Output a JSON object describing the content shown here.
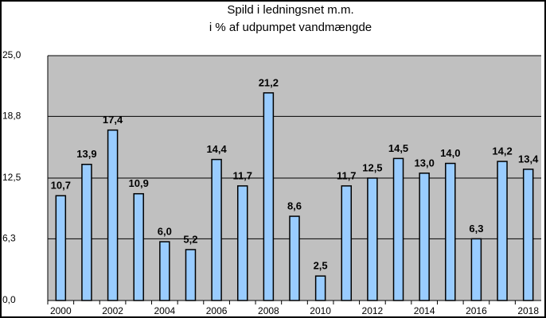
{
  "chart_data": {
    "type": "bar",
    "title": [
      "Spild i ledningsnet m.m.",
      "i % af udpumpet vandmængde"
    ],
    "categories": [
      "2000",
      null,
      "2002",
      null,
      "2004",
      null,
      "2006",
      null,
      "2008",
      null,
      "2010",
      null,
      "2012",
      null,
      "2014",
      null,
      "2016",
      null,
      "2018"
    ],
    "values": [
      10.7,
      13.9,
      17.4,
      10.9,
      6.0,
      5.2,
      14.4,
      11.7,
      21.2,
      8.6,
      2.5,
      11.7,
      12.5,
      14.5,
      13.0,
      14.0,
      6.3,
      14.2,
      13.4
    ],
    "value_labels": [
      "10,7",
      "13,9",
      "17,4",
      "10,9",
      "6,0",
      "5,2",
      "14,4",
      "11,7",
      "21,2",
      "8,6",
      "2,5",
      "11,7",
      "12,5",
      "14,5",
      "13,0",
      "14,0",
      "6,3",
      "14,2",
      "13,4"
    ],
    "color": "#99ccff",
    "ylim": [
      0,
      25
    ],
    "yticks": [
      {
        "value": 0,
        "label": "0,0"
      },
      {
        "value": 6.3,
        "label": "6,3"
      },
      {
        "value": 12.5,
        "label": "12,5"
      },
      {
        "value": 18.8,
        "label": "18,8"
      },
      {
        "value": 25,
        "label": "25,0"
      }
    ],
    "grid": true
  }
}
